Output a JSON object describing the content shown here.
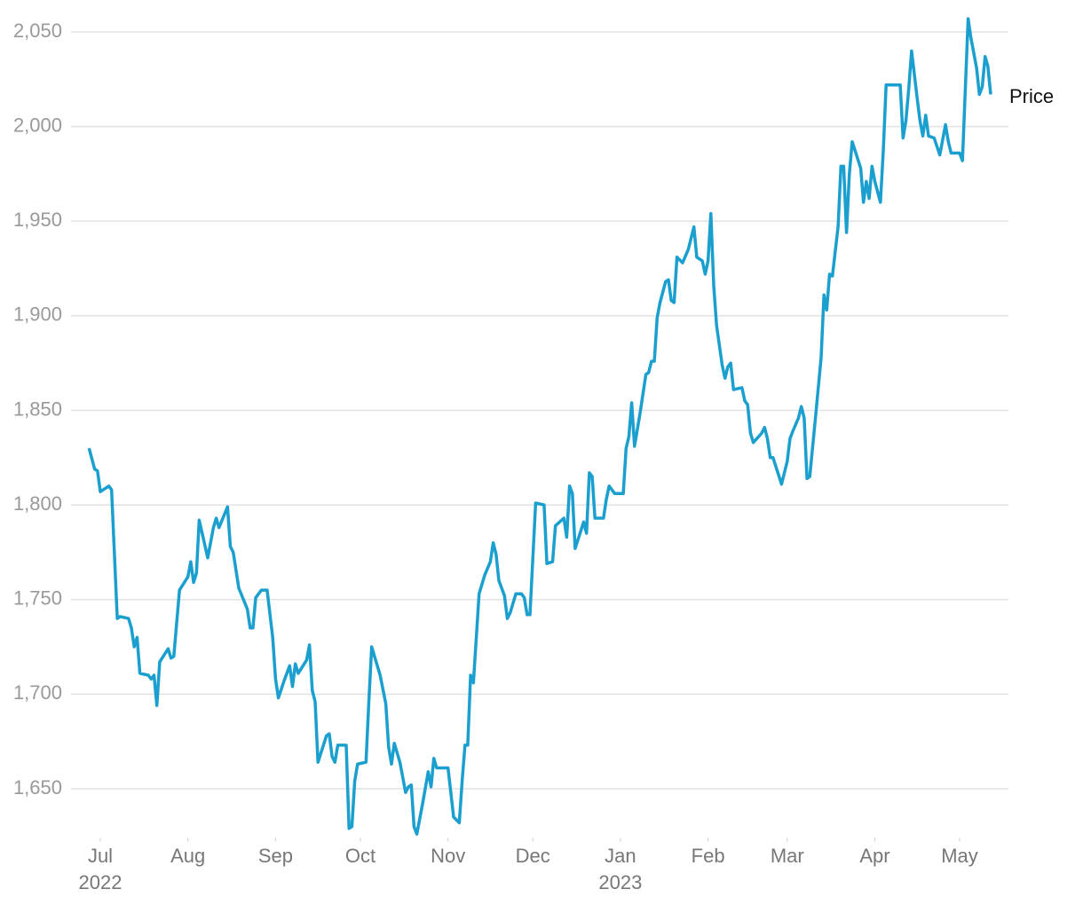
{
  "chart_data": {
    "type": "line",
    "x": [
      -4,
      -2,
      -1,
      0,
      3,
      4,
      6,
      7,
      10,
      11,
      12,
      13,
      14,
      17,
      18,
      19,
      20,
      21,
      24,
      25,
      26,
      28,
      31,
      32,
      33,
      34,
      35,
      38,
      40,
      41,
      42,
      45,
      46,
      47,
      49,
      52,
      53,
      54,
      55,
      57,
      59,
      61,
      62,
      63,
      65,
      67,
      68,
      69,
      70,
      73,
      74,
      75,
      76,
      77,
      80,
      81,
      82,
      83,
      84,
      87,
      88,
      89,
      90,
      91,
      94,
      95,
      96,
      99,
      101,
      102,
      103,
      104,
      106,
      108,
      109,
      110,
      111,
      112,
      114,
      116,
      117,
      118,
      119,
      123,
      125,
      127,
      128,
      129,
      130,
      131,
      132,
      134,
      136,
      138,
      139,
      140,
      141,
      143,
      144,
      145,
      147,
      149,
      150,
      151,
      152,
      154,
      157,
      158,
      160,
      161,
      164,
      165,
      166,
      167,
      168,
      171,
      172,
      173,
      174,
      175,
      178,
      179,
      180,
      182,
      185,
      186,
      187,
      188,
      189,
      191,
      193,
      194,
      195,
      196,
      197,
      198,
      200,
      201,
      202,
      203,
      204,
      206,
      208,
      210,
      211,
      213,
      214,
      215,
      216,
      217,
      218,
      220,
      221,
      222,
      223,
      224,
      227,
      228,
      229,
      230,
      231,
      234,
      235,
      236,
      237,
      238,
      241,
      243,
      244,
      245,
      247,
      248,
      249,
      250,
      251,
      253,
      255,
      256,
      257,
      258,
      259,
      261,
      262,
      263,
      264,
      265,
      266,
      269,
      270,
      271,
      272,
      273,
      274,
      276,
      277,
      278,
      283,
      284,
      285,
      286,
      287,
      289,
      290,
      291,
      292,
      293,
      295,
      297,
      299,
      300,
      301,
      304,
      305,
      307,
      308,
      310,
      311,
      312,
      313,
      314,
      315
    ],
    "series": [
      {
        "name": "Price",
        "color": "#1a9fcf",
        "values": [
          1830,
          1819,
          1818,
          1807,
          1810,
          1808,
          1740,
          1741,
          1740,
          1735,
          1725,
          1730,
          1711,
          1710,
          1708,
          1710,
          1694,
          1717,
          1724,
          1719,
          1720,
          1755,
          1762,
          1770,
          1759,
          1764,
          1792,
          1772,
          1788,
          1793,
          1788,
          1799,
          1778,
          1775,
          1756,
          1745,
          1735,
          1735,
          1751,
          1755,
          1755,
          1730,
          1708,
          1698,
          1707,
          1715,
          1704,
          1716,
          1711,
          1718,
          1726,
          1702,
          1696,
          1664,
          1678,
          1679,
          1667,
          1664,
          1673,
          1673,
          1629,
          1630,
          1654,
          1663,
          1664,
          1696,
          1725,
          1710,
          1695,
          1672,
          1663,
          1674,
          1664,
          1648,
          1651,
          1652,
          1630,
          1626,
          1642,
          1659,
          1651,
          1666,
          1661,
          1661,
          1635,
          1632,
          1654,
          1673,
          1673,
          1710,
          1706,
          1753,
          1763,
          1770,
          1780,
          1774,
          1760,
          1752,
          1740,
          1743,
          1753,
          1753,
          1751,
          1742,
          1742,
          1801,
          1800,
          1769,
          1770,
          1789,
          1793,
          1783,
          1810,
          1806,
          1777,
          1791,
          1785,
          1817,
          1815,
          1793,
          1793,
          1803,
          1810,
          1806,
          1806,
          1830,
          1836,
          1854,
          1831,
          1849,
          1869,
          1870,
          1876,
          1876,
          1899,
          1907,
          1918,
          1919,
          1908,
          1907,
          1931,
          1928,
          1935,
          1947,
          1931,
          1929,
          1922,
          1929,
          1954,
          1916,
          1895,
          1874,
          1867,
          1873,
          1875,
          1861,
          1862,
          1855,
          1853,
          1838,
          1833,
          1838,
          1841,
          1835,
          1825,
          1825,
          1811,
          1823,
          1835,
          1839,
          1846,
          1852,
          1846,
          1814,
          1815,
          1846,
          1878,
          1911,
          1903,
          1922,
          1921,
          1947,
          1979,
          1979,
          1944,
          1975,
          1992,
          1978,
          1960,
          1971,
          1962,
          1979,
          1971,
          1960,
          1987,
          2022,
          2022,
          1994,
          2003,
          2020,
          2040,
          2015,
          2003,
          1995,
          2006,
          1995,
          1994,
          1985,
          2001,
          1992,
          1986,
          1986,
          1982,
          2057,
          2047,
          2031,
          2017,
          2021,
          2037,
          2032,
          2017
        ]
      }
    ],
    "xlim": [
      -8,
      320
    ],
    "xticks": [
      {
        "value": 0,
        "label": "Jul"
      },
      {
        "value": 31,
        "label": "Aug"
      },
      {
        "value": 62,
        "label": "Sep"
      },
      {
        "value": 92,
        "label": "Oct"
      },
      {
        "value": 123,
        "label": "Nov"
      },
      {
        "value": 153,
        "label": "Dec"
      },
      {
        "value": 184,
        "label": "Jan"
      },
      {
        "value": 215,
        "label": "Feb"
      },
      {
        "value": 243,
        "label": "Mar"
      },
      {
        "value": 274,
        "label": "Apr"
      },
      {
        "value": 304,
        "label": "May"
      }
    ],
    "year_labels": [
      {
        "value": 0,
        "label": "2022"
      },
      {
        "value": 184,
        "label": "2023"
      }
    ],
    "ylim": [
      1624,
      2058
    ],
    "yticks": [
      {
        "value": 1650,
        "label": "1,650"
      },
      {
        "value": 1700,
        "label": "1,700"
      },
      {
        "value": 1750,
        "label": "1,750"
      },
      {
        "value": 1800,
        "label": "1,800"
      },
      {
        "value": 1850,
        "label": "1,850"
      },
      {
        "value": 1900,
        "label": "1,900"
      },
      {
        "value": 1950,
        "label": "1,950"
      },
      {
        "value": 2000,
        "label": "2,000"
      },
      {
        "value": 2050,
        "label": "2,050"
      }
    ],
    "grid": true
  }
}
